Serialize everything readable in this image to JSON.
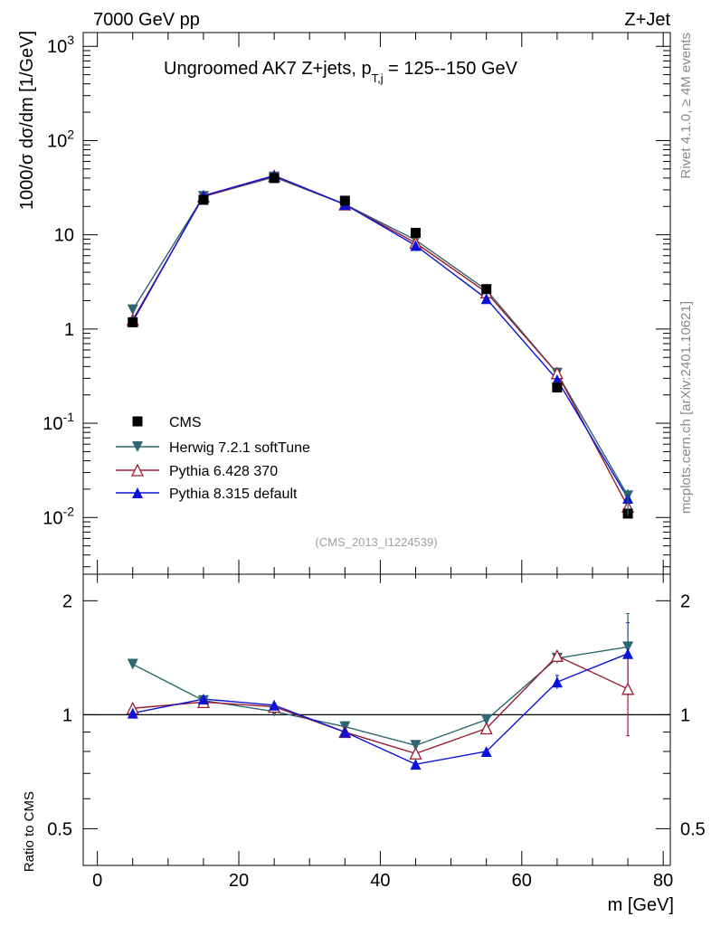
{
  "header": {
    "left": "7000 GeV pp",
    "right": "Z+Jet"
  },
  "side": {
    "rivet": "Rivet 4.1.0, ≥ 4M events",
    "mcplots": "mcplots.cern.ch [arXiv:2401.10621]"
  },
  "chart_data": {
    "type": "line",
    "title": "Ungroomed AK7 Z+jets, p_{T,j} = 125--150 GeV",
    "title_main": "Ungroomed AK7 Z+jets, p",
    "title_sub": "T,j",
    "title_tail": " = 125--150 GeV",
    "analysis_id": "(CMS_2013_I1224539)",
    "xlabel": "m [GeV]",
    "ylabel": "1000/σ  dσ/dm [1/GeV]",
    "ratio_ylabel": "Ratio to CMS",
    "xlim": [
      -2,
      81
    ],
    "ylim": [
      0.0025,
      1400
    ],
    "yscale": "log",
    "ratio_ylim": [
      0.4,
      2.35
    ],
    "ratio_yscale": "log",
    "x_ticks": [
      "0",
      "20",
      "40",
      "60",
      "80"
    ],
    "y_ticks": [
      "10^-2",
      "10^-1",
      "1",
      "10",
      "10^2",
      "10^3"
    ],
    "ratio_ticks": [
      "0.5",
      "1",
      "2"
    ],
    "x": [
      5,
      15,
      25,
      35,
      45,
      55,
      65,
      75
    ],
    "legend": [
      "CMS",
      "Herwig 7.2.1 softTune",
      "Pythia 6.428 370",
      "Pythia 8.315 default"
    ],
    "series": [
      {
        "name": "CMS",
        "color": "#000000",
        "marker": "square",
        "values": [
          1.18,
          23.5,
          40.0,
          23.0,
          10.5,
          2.65,
          0.24,
          0.011
        ]
      },
      {
        "name": "Herwig 7.2.1 softTune",
        "color": "#2d6670",
        "marker": "triangle-down",
        "values": [
          1.6,
          25.5,
          41.0,
          21.0,
          8.8,
          2.6,
          0.34,
          0.017
        ]
      },
      {
        "name": "Pythia 6.428 370",
        "color": "#9c1d35",
        "marker": "triangle-up-open",
        "values": [
          1.25,
          25.5,
          42.0,
          21.0,
          8.2,
          2.45,
          0.34,
          0.013
        ]
      },
      {
        "name": "Pythia 8.315 default",
        "color": "#0b14d6",
        "marker": "triangle-up",
        "values": [
          1.2,
          26.0,
          42.5,
          21.0,
          7.7,
          2.1,
          0.29,
          0.016
        ]
      }
    ],
    "ratio_series": [
      {
        "name": "Herwig 7.2.1 softTune",
        "values": [
          1.36,
          1.09,
          1.02,
          0.93,
          0.83,
          0.97,
          1.41,
          1.51
        ]
      },
      {
        "name": "Pythia 6.428 370",
        "values": [
          1.04,
          1.08,
          1.05,
          0.9,
          0.79,
          0.92,
          1.43,
          1.17
        ]
      },
      {
        "name": "Pythia 8.315 default",
        "values": [
          1.01,
          1.1,
          1.06,
          0.9,
          0.74,
          0.8,
          1.22,
          1.45
        ]
      }
    ],
    "ratio_errors": {
      "Pythia 8.315 default": [
        0,
        0,
        0,
        0,
        0,
        0,
        0.05,
        0.3
      ]
    }
  }
}
